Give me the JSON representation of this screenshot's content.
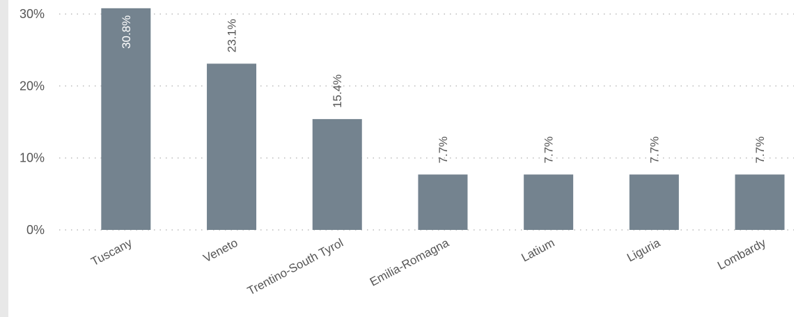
{
  "chart_data": {
    "type": "bar",
    "categories": [
      "Tuscany",
      "Veneto",
      "Trentino-South Tyrol",
      "Emilia-Romagna",
      "Latium",
      "Liguria",
      "Lombardy"
    ],
    "values": [
      30.8,
      23.1,
      15.4,
      7.7,
      7.7,
      7.7,
      7.7
    ],
    "data_labels": [
      "30.8%",
      "23.1%",
      "15.4%",
      "7.7%",
      "7.7%",
      "7.7%",
      "7.7%"
    ],
    "y_ticks": [
      0,
      10,
      20,
      30
    ],
    "y_tick_labels": [
      "0%",
      "10%",
      "20%",
      "30%"
    ],
    "ylim": [
      0,
      31
    ],
    "title": "",
    "xlabel": "",
    "ylabel": "",
    "grid": "horizontal dotted",
    "colors": {
      "bar": "#74838f",
      "label_outside": "#555555",
      "label_inside": "#ffffff",
      "grid": "#bbbbbb"
    }
  }
}
